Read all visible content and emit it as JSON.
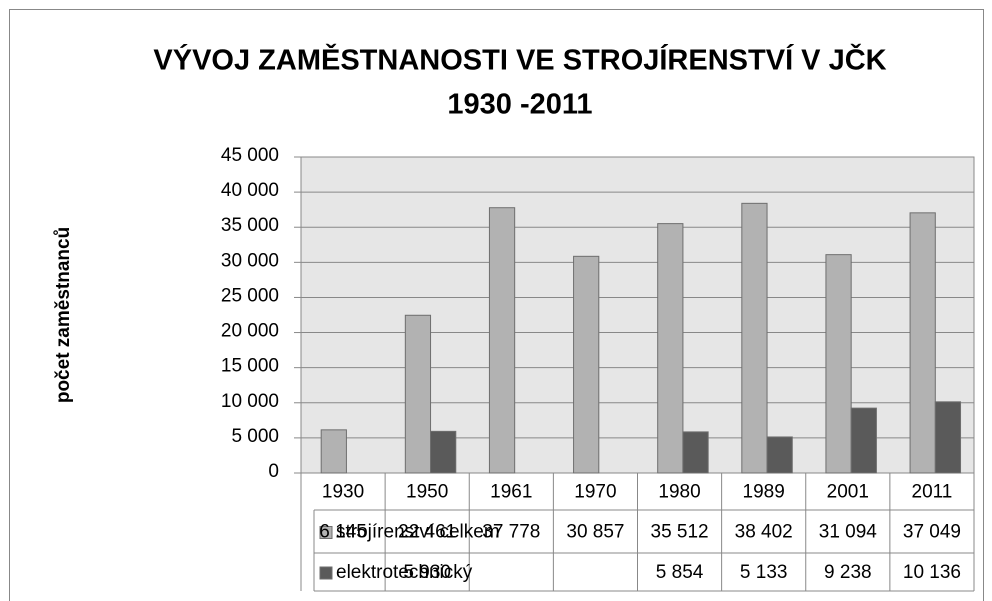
{
  "chart_data": {
    "type": "bar",
    "title": [
      "VÝVOJ ZAMĚSTNANOSTI VE STROJÍRENSTVÍ V JČK",
      "1930 -2011"
    ],
    "y_label": "počet zaměstnanců",
    "categories": [
      "1930",
      "1950",
      "1961",
      "1970",
      "1980",
      "1989",
      "2001",
      "2011"
    ],
    "series": [
      {
        "name": "strojírenství celkem",
        "color": "#b2b2b2",
        "values": [
          6145,
          22461,
          37778,
          30857,
          35512,
          38402,
          31094,
          37049
        ],
        "value_labels": [
          "6 145",
          "22 461",
          "37 778",
          "30 857",
          "35 512",
          "38 402",
          "31 094",
          "37 049"
        ]
      },
      {
        "name": "elektrotechnický",
        "color": "#5a5a5a",
        "values": [
          null,
          5930,
          null,
          null,
          5854,
          5133,
          9238,
          10136
        ],
        "value_labels": [
          null,
          "5 930",
          null,
          null,
          "5 854",
          "5 133",
          "9 238",
          "10 136"
        ]
      }
    ],
    "ylim": [
      0,
      45000
    ],
    "yticks": [
      0,
      {
        "value": 5000,
        "label": "5 000"
      },
      {
        "value": 10000,
        "label": "10 000"
      },
      {
        "value": 15000,
        "label": "15 000"
      },
      {
        "value": 20000,
        "label": "20 000"
      },
      {
        "value": 25000,
        "label": "25 000"
      },
      {
        "value": 30000,
        "label": "30 000"
      },
      {
        "value": 35000,
        "label": "35 000"
      },
      {
        "value": 40000,
        "label": "40 000"
      },
      {
        "value": 45000,
        "label": "45 000"
      }
    ],
    "grid": true
  }
}
